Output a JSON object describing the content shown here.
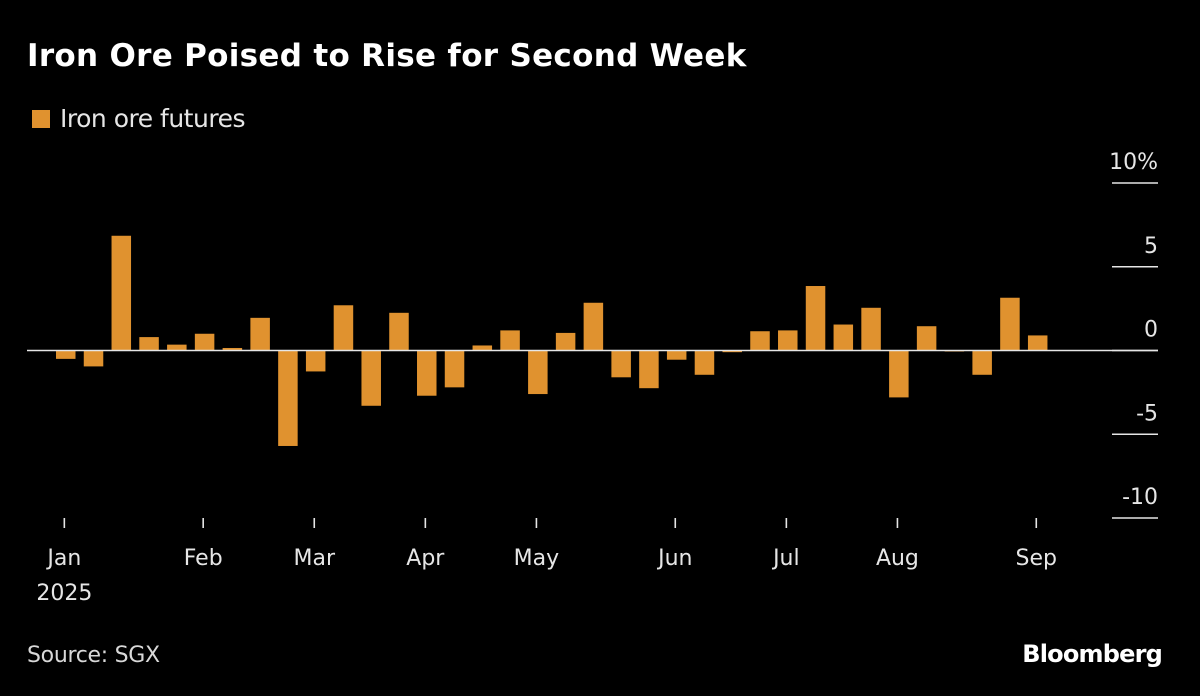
{
  "header": {
    "title": "Iron Ore Poised to Rise for Second Week"
  },
  "footer": {
    "source": "Source: SGX",
    "brand": "Bloomberg"
  },
  "colors": {
    "background": "#000000",
    "bar": "#E0922F",
    "axis": "#E6E6E6",
    "text": "#FFFFFF"
  },
  "chart_data": {
    "type": "bar",
    "title": "Iron Ore Poised to Rise for Second Week",
    "xlabel": "",
    "ylabel": "",
    "legend": {
      "entries": [
        "Iron ore futures"
      ],
      "placement": "top-left"
    },
    "series": [
      {
        "name": "Iron ore futures",
        "unit": "%",
        "values": [
          -0.5,
          -0.95,
          6.85,
          0.8,
          0.35,
          1.0,
          0.15,
          1.95,
          -5.7,
          -1.25,
          2.7,
          -3.3,
          2.25,
          -2.7,
          -2.2,
          0.3,
          1.2,
          -2.6,
          1.05,
          2.85,
          -1.6,
          -2.25,
          -0.55,
          -1.45,
          -0.1,
          1.15,
          1.2,
          3.85,
          1.55,
          2.55,
          -2.8,
          1.45,
          -0.05,
          -1.45,
          3.15,
          0.9
        ]
      }
    ],
    "x_period": "weekly, Jan 2025 – Sep 2025",
    "x_ticks": [
      {
        "label": "Jan",
        "sublabel": "2025",
        "week_index": 0.3
      },
      {
        "label": "Feb",
        "sublabel": "",
        "week_index": 5.3
      },
      {
        "label": "Mar",
        "sublabel": "",
        "week_index": 9.3
      },
      {
        "label": "Apr",
        "sublabel": "",
        "week_index": 13.3
      },
      {
        "label": "May",
        "sublabel": "",
        "week_index": 17.3
      },
      {
        "label": "Jun",
        "sublabel": "",
        "week_index": 22.3
      },
      {
        "label": "Jul",
        "sublabel": "",
        "week_index": 26.3
      },
      {
        "label": "Aug",
        "sublabel": "",
        "week_index": 30.3
      },
      {
        "label": "Sep",
        "sublabel": "",
        "week_index": 35.3
      }
    ],
    "y_ticks": [
      {
        "value": 10,
        "label": "10%"
      },
      {
        "value": 5,
        "label": "5"
      },
      {
        "value": 0,
        "label": "0"
      },
      {
        "value": -5,
        "label": "-5"
      },
      {
        "value": -10,
        "label": "-10"
      }
    ],
    "ylim": [
      -10,
      10
    ],
    "y_axis_side": "right",
    "grid": false
  }
}
